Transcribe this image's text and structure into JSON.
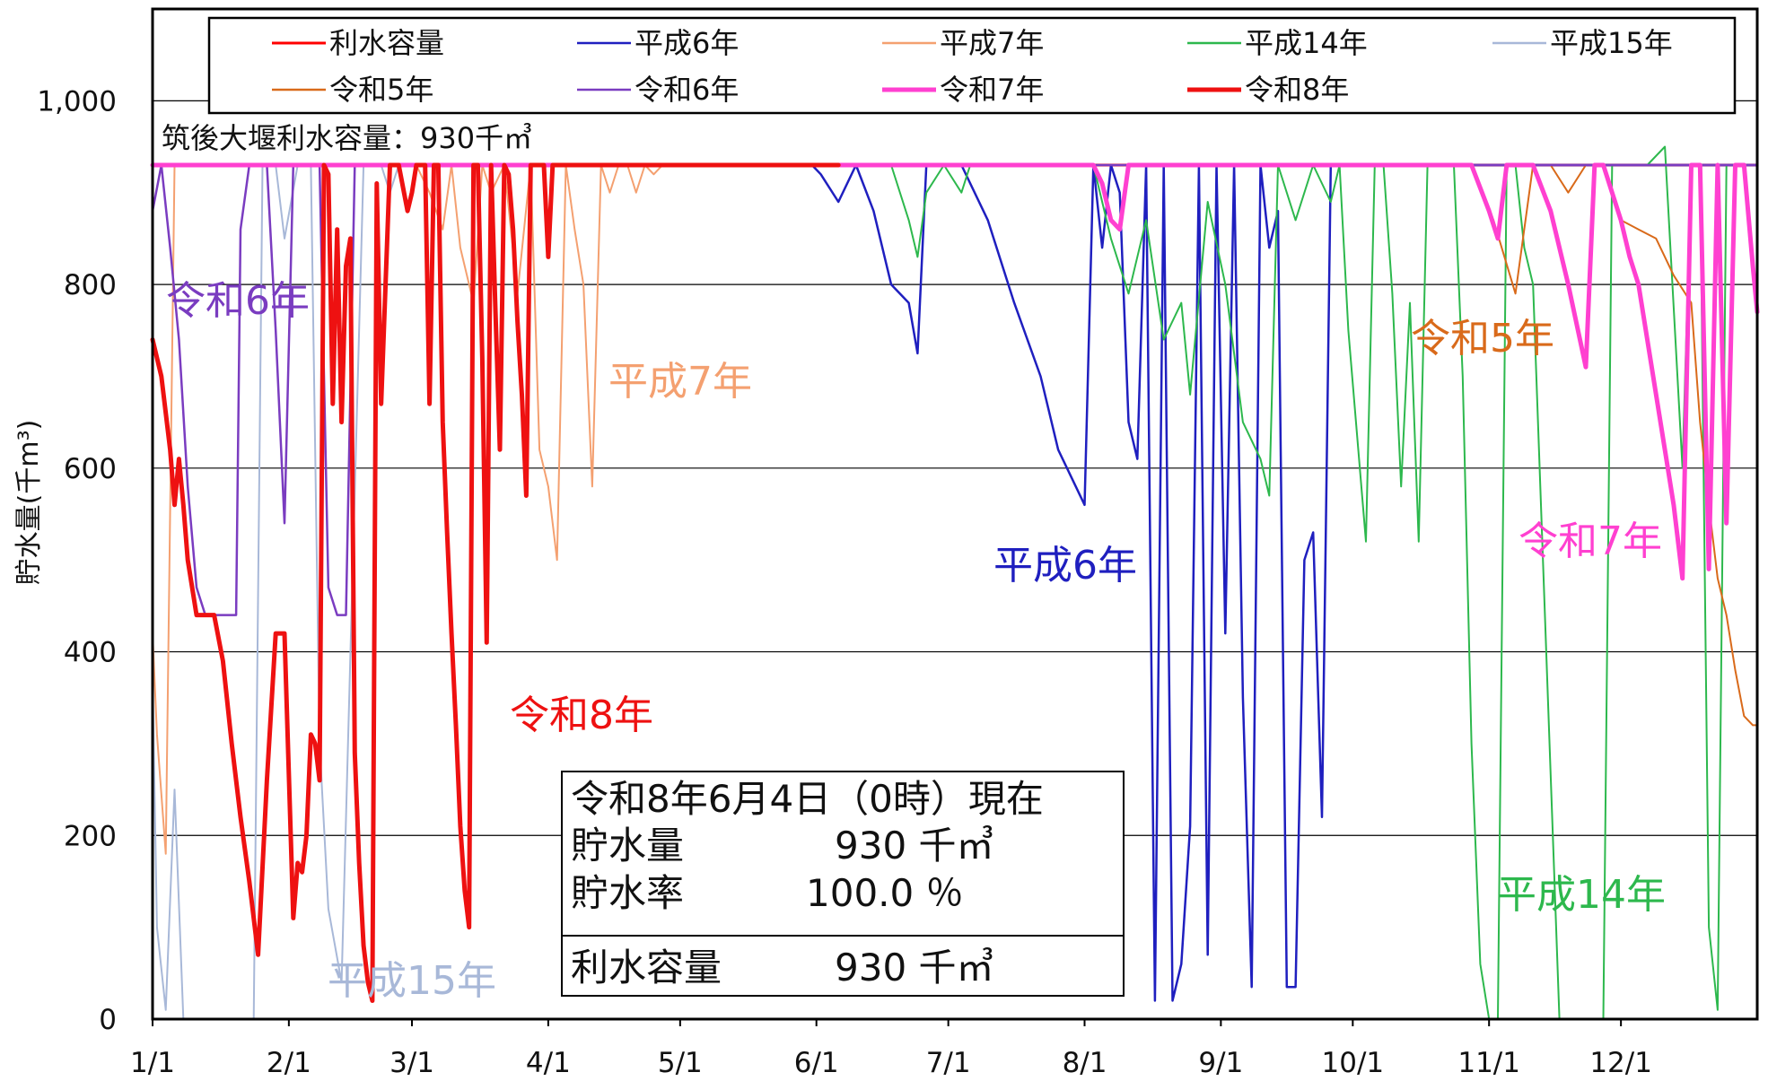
{
  "chart_data": {
    "type": "line",
    "ylabel": "貯水量(千m³)",
    "ylim": [
      0,
      1100
    ],
    "y_ticks": [
      "0",
      "200",
      "400",
      "600",
      "800",
      "1,000"
    ],
    "x_ticks": [
      "1/1",
      "2/1",
      "3/1",
      "4/1",
      "5/1",
      "6/1",
      "7/1",
      "8/1",
      "9/1",
      "10/1",
      "11/1",
      "12/1"
    ],
    "grid": true,
    "legend_position": "top",
    "capacity_label": "筑後大堰利水容量：930千㎥",
    "info_box": {
      "date_line": "令和8年6月4日（0時）現在",
      "storage_label": "貯水量",
      "storage_value": "930 千㎥",
      "rate_label": "貯水率",
      "rate_value": "100.0 ％",
      "capacity_label": "利水容量",
      "capacity_value": "930 千㎥"
    },
    "series": [
      {
        "name": "利水容量",
        "color": "#ff0000",
        "width": 3,
        "x": [
          0,
          365
        ],
        "y": [
          930,
          930
        ]
      },
      {
        "name": "平成6年",
        "color": "#1f1fbf",
        "width": 2.5,
        "x": [
          0,
          150,
          152,
          156,
          160,
          164,
          168,
          172,
          174,
          176,
          180,
          184,
          190,
          196,
          202,
          206,
          212,
          214,
          216,
          218,
          220,
          222,
          224,
          226,
          228,
          230,
          232,
          234,
          236,
          238,
          240,
          242,
          244,
          246,
          248,
          250,
          252,
          254,
          256,
          258,
          260,
          262,
          264,
          266,
          268,
          270,
          272,
          274,
          276,
          278,
          280,
          365
        ],
        "y": [
          930,
          930,
          920,
          890,
          930,
          880,
          800,
          780,
          725,
          930,
          930,
          930,
          870,
          780,
          700,
          620,
          560,
          930,
          840,
          930,
          900,
          650,
          610,
          930,
          20,
          930,
          20,
          60,
          210,
          930,
          70,
          930,
          420,
          930,
          350,
          35,
          930,
          840,
          880,
          35,
          35,
          500,
          530,
          220,
          930,
          930,
          930,
          930,
          930,
          930,
          930,
          930
        ]
      },
      {
        "name": "平成7年",
        "color": "#f4a070",
        "width": 2,
        "x": [
          0,
          1,
          3,
          5,
          6,
          8,
          60,
          63,
          66,
          68,
          70,
          73,
          75,
          77,
          80,
          83,
          86,
          88,
          90,
          92,
          94,
          96,
          98,
          100,
          102,
          104,
          106,
          108,
          110,
          112,
          114,
          116,
          118,
          365
        ],
        "y": [
          420,
          310,
          180,
          930,
          930,
          930,
          930,
          900,
          860,
          930,
          840,
          780,
          930,
          900,
          930,
          790,
          930,
          620,
          580,
          500,
          930,
          860,
          800,
          580,
          930,
          900,
          930,
          930,
          900,
          930,
          920,
          930,
          930,
          930
        ]
      },
      {
        "name": "平成14年",
        "color": "#2db84d",
        "width": 2,
        "x": [
          0,
          168,
          172,
          174,
          176,
          180,
          184,
          186,
          214,
          218,
          222,
          226,
          230,
          234,
          236,
          240,
          244,
          248,
          252,
          254,
          256,
          260,
          264,
          268,
          270,
          272,
          276,
          278,
          280,
          282,
          284,
          286,
          288,
          290,
          292,
          296,
          298,
          300,
          302,
          304,
          306,
          308,
          310,
          312,
          314,
          320,
          324,
          328,
          330,
          332,
          336,
          340,
          344,
          348,
          350,
          352,
          354,
          356,
          358,
          360,
          362,
          365
        ],
        "y": [
          930,
          930,
          870,
          830,
          900,
          930,
          900,
          930,
          930,
          850,
          790,
          870,
          740,
          780,
          680,
          890,
          800,
          650,
          610,
          570,
          930,
          870,
          930,
          890,
          930,
          750,
          520,
          930,
          930,
          790,
          580,
          780,
          520,
          930,
          930,
          930,
          700,
          300,
          60,
          0,
          0,
          930,
          930,
          840,
          800,
          0,
          0,
          0,
          0,
          930,
          930,
          930,
          950,
          600,
          930,
          930,
          100,
          10,
          930,
          930,
          930,
          930
        ]
      },
      {
        "name": "平成15年",
        "color": "#a8b8d8",
        "width": 2,
        "x": [
          0,
          1,
          3,
          5,
          7,
          10,
          20,
          23,
          25,
          27,
          28,
          30,
          33,
          36,
          38,
          40,
          43,
          48,
          52,
          54,
          56,
          58,
          365
        ],
        "y": [
          370,
          100,
          10,
          250,
          0,
          0,
          0,
          0,
          930,
          930,
          930,
          850,
          930,
          930,
          300,
          120,
          40,
          930,
          930,
          900,
          930,
          930,
          930
        ]
      },
      {
        "name": "令和5年",
        "color": "#d96a1a",
        "width": 2,
        "x": [
          0,
          300,
          305,
          310,
          314,
          318,
          322,
          326,
          330,
          334,
          338,
          342,
          346,
          350,
          352,
          354,
          356,
          358,
          360,
          362,
          364,
          365
        ],
        "y": [
          930,
          930,
          870,
          790,
          930,
          930,
          900,
          930,
          930,
          870,
          860,
          850,
          810,
          780,
          650,
          560,
          480,
          440,
          380,
          330,
          320,
          320
        ]
      },
      {
        "name": "令和6年",
        "color": "#7a3cc0",
        "width": 2.5,
        "x": [
          0,
          2,
          4,
          6,
          8,
          10,
          12,
          14,
          16,
          18,
          19,
          20,
          22,
          24,
          26,
          28,
          30,
          32,
          34,
          36,
          38,
          40,
          42,
          44,
          46,
          48,
          50,
          52,
          54,
          56,
          365
        ],
        "y": [
          880,
          930,
          840,
          740,
          580,
          470,
          440,
          440,
          440,
          440,
          440,
          860,
          930,
          930,
          930,
          750,
          540,
          930,
          930,
          930,
          930,
          470,
          440,
          440,
          930,
          930,
          930,
          930,
          930,
          930,
          930
        ]
      },
      {
        "name": "令和7年",
        "color": "#ff40d0",
        "width": 5,
        "x": [
          0,
          214,
          216,
          218,
          220,
          222,
          224,
          228,
          300,
          304,
          306,
          308,
          310,
          314,
          318,
          322,
          326,
          328,
          330,
          332,
          334,
          336,
          338,
          340,
          342,
          344,
          346,
          348,
          350,
          352,
          354,
          356,
          358,
          360,
          362,
          364,
          365
        ],
        "y": [
          930,
          930,
          910,
          870,
          860,
          930,
          930,
          930,
          930,
          880,
          850,
          930,
          930,
          930,
          880,
          800,
          710,
          930,
          930,
          900,
          870,
          830,
          800,
          740,
          680,
          620,
          560,
          480,
          930,
          930,
          490,
          930,
          540,
          930,
          930,
          820,
          770
        ]
      },
      {
        "name": "令和8年",
        "color": "#ee1111",
        "width": 5,
        "x": [
          0,
          2,
          4,
          5,
          6,
          7,
          8,
          10,
          12,
          14,
          16,
          18,
          20,
          22,
          24,
          26,
          28,
          30,
          32,
          33,
          34,
          35,
          36,
          37,
          38,
          39,
          40,
          41,
          42,
          43,
          44,
          45,
          46,
          47,
          48,
          49,
          50,
          51,
          52,
          54,
          56,
          58,
          59,
          60,
          61,
          62,
          63,
          64,
          65,
          66,
          67,
          68,
          69,
          70,
          71,
          72,
          73,
          74,
          75,
          76,
          77,
          78,
          79,
          80,
          81,
          82,
          83,
          84,
          85,
          86,
          87,
          88,
          89,
          90,
          91,
          92,
          93,
          94,
          95,
          96,
          97,
          98,
          100,
          110,
          130,
          150,
          156
        ],
        "y": [
          740,
          700,
          620,
          560,
          610,
          560,
          500,
          440,
          440,
          440,
          390,
          300,
          220,
          150,
          70,
          260,
          420,
          420,
          110,
          170,
          160,
          200,
          310,
          300,
          260,
          930,
          920,
          670,
          860,
          650,
          820,
          850,
          290,
          170,
          80,
          40,
          20,
          910,
          670,
          930,
          930,
          880,
          900,
          930,
          930,
          930,
          670,
          930,
          930,
          650,
          530,
          420,
          320,
          210,
          140,
          100,
          930,
          930,
          720,
          410,
          930,
          770,
          620,
          930,
          920,
          860,
          760,
          680,
          570,
          930,
          930,
          930,
          930,
          830,
          930,
          930,
          930,
          930,
          930,
          930,
          930,
          930,
          930,
          930,
          930,
          930,
          930
        ]
      }
    ]
  }
}
